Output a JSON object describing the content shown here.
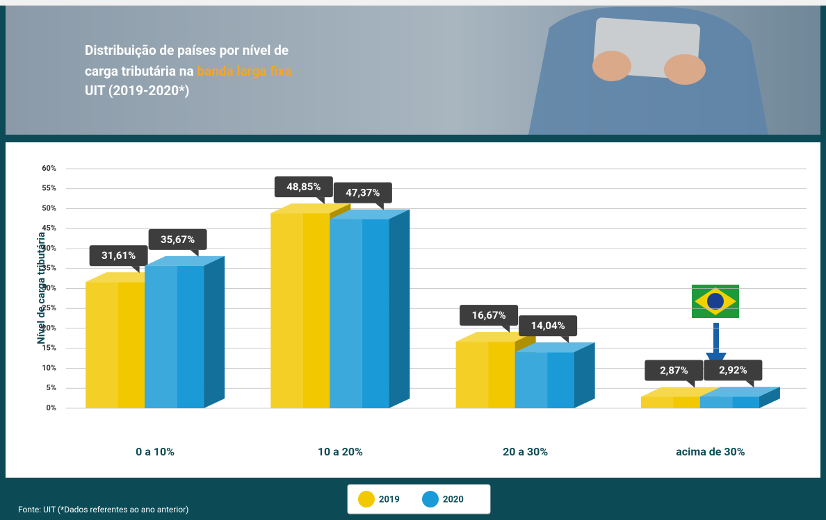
{
  "chart_data": {
    "type": "bar",
    "title": {
      "line1": "Distribuição de países por nível de",
      "line2": "carga tributária na",
      "highlight": "banda larga fixa",
      "line3": "UIT (2019-2020*)"
    },
    "ylabel": "Nível de carga tributária",
    "categories": [
      "0 a 10%",
      "10 a 20%",
      "20 a 30%",
      "acima de 30%"
    ],
    "series": [
      {
        "name": "2019",
        "color": "#f2c800",
        "values": [
          31.61,
          48.85,
          16.67,
          2.87
        ],
        "value_labels": [
          "31,61%",
          "48,85%",
          "16,67%",
          "2,87%"
        ]
      },
      {
        "name": "2020",
        "color": "#1a9bd7",
        "values": [
          35.67,
          47.37,
          14.04,
          2.92
        ],
        "value_labels": [
          "35,67%",
          "47,37%",
          "14,04%",
          "2,92%"
        ]
      }
    ],
    "ylim": [
      0,
      60
    ],
    "yticks": [
      {
        "value": 0,
        "label": "0%"
      },
      {
        "value": 5,
        "label": "5%"
      },
      {
        "value": 10,
        "label": "10%"
      },
      {
        "value": 15,
        "label": "15%"
      },
      {
        "value": 20,
        "label": "20%"
      },
      {
        "value": 25,
        "label": "25%"
      },
      {
        "value": 30,
        "label": "30%"
      },
      {
        "value": 35,
        "label": "35%"
      },
      {
        "value": 40,
        "label": "40%"
      },
      {
        "value": 45,
        "label": "45%"
      },
      {
        "value": 50,
        "label": "50%"
      },
      {
        "value": 55,
        "label": "55%"
      },
      {
        "value": 60,
        "label": "60%"
      }
    ],
    "grid": true,
    "source": "Fonte: UIT (*Dados referentes ao ano anterior)"
  }
}
